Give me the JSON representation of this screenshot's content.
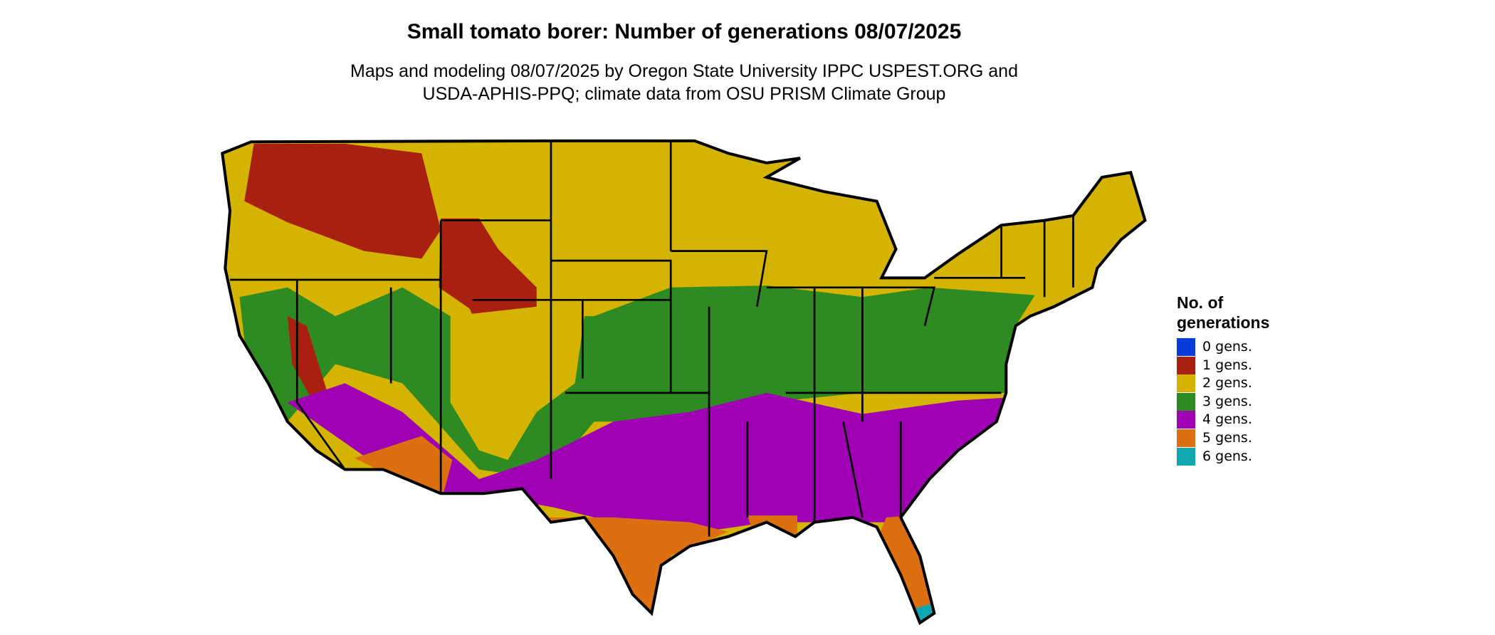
{
  "header": {
    "title": "Small tomato borer: Number of generations 08/07/2025",
    "subtitle": [
      "Maps and modeling 08/07/2025 by Oregon State University IPPC USPEST.ORG and",
      "USDA-APHIS-PPQ; climate data from OSU PRISM Climate Group"
    ]
  },
  "legend": {
    "title": [
      "No. of",
      "generations"
    ],
    "items": [
      {
        "label": "0 gens.",
        "color": "#0a3cdc"
      },
      {
        "label": "1 gens.",
        "color": "#a8200f"
      },
      {
        "label": "2 gens.",
        "color": "#d4b400"
      },
      {
        "label": "3 gens.",
        "color": "#2e8b22"
      },
      {
        "label": "4 gens.",
        "color": "#a000b4"
      },
      {
        "label": "5 gens.",
        "color": "#dc7010"
      },
      {
        "label": "6 gens.",
        "color": "#10a8b0"
      }
    ]
  }
}
